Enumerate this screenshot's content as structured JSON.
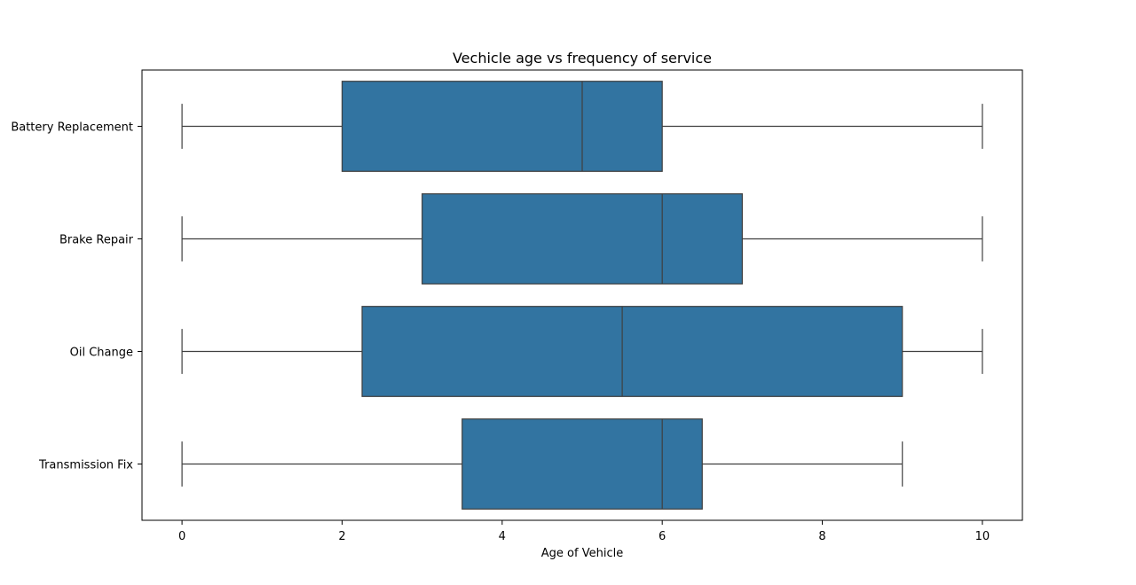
{
  "chart_data": {
    "type": "box",
    "orientation": "horizontal",
    "title": "Vechicle age vs frequency of service",
    "xlabel": "Age of Vehicle",
    "ylabel": "",
    "xlim": [
      -0.5,
      10.5
    ],
    "xticks": [
      0,
      2,
      4,
      6,
      8,
      10
    ],
    "grid": false,
    "box_color": "#3274a1",
    "line_color": "#3f3f3f",
    "categories": [
      "Battery Replacement",
      "Brake Repair",
      "Oil Change",
      "Transmission Fix"
    ],
    "boxes": [
      {
        "category": "Battery Replacement",
        "whisker_low": 0,
        "q1": 2,
        "median": 5,
        "q3": 6,
        "whisker_high": 10
      },
      {
        "category": "Brake Repair",
        "whisker_low": 0,
        "q1": 3,
        "median": 6,
        "q3": 7,
        "whisker_high": 10
      },
      {
        "category": "Oil Change",
        "whisker_low": 0,
        "q1": 2.25,
        "median": 5.5,
        "q3": 9,
        "whisker_high": 10
      },
      {
        "category": "Transmission Fix",
        "whisker_low": 0,
        "q1": 3.5,
        "median": 6,
        "q3": 6.5,
        "whisker_high": 9
      }
    ]
  }
}
